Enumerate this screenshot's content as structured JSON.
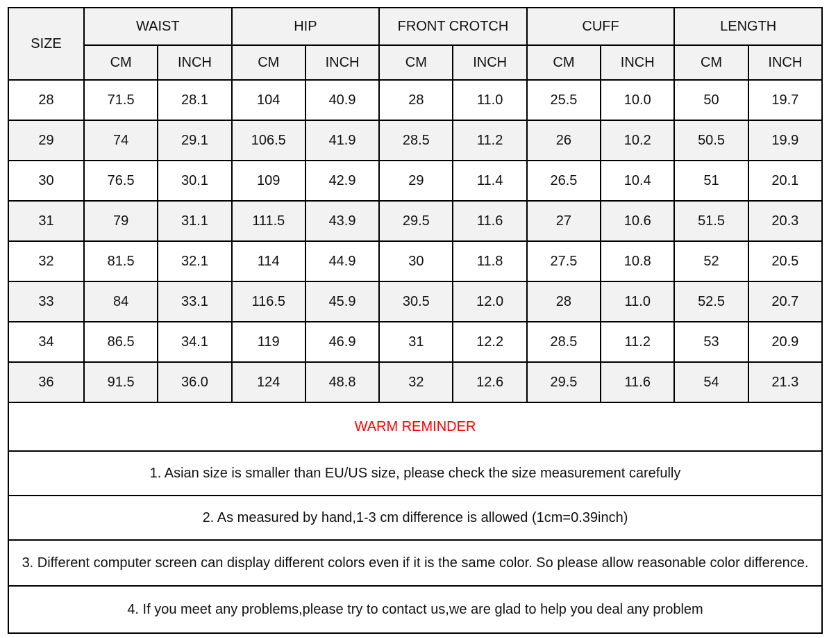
{
  "table": {
    "size_header": "SIZE",
    "unit_cm": "CM",
    "unit_inch": "INCH",
    "groups": [
      "WAIST",
      "HIP",
      "FRONT CROTCH",
      "CUFF",
      "LENGTH"
    ],
    "rows": [
      {
        "size": "28",
        "values": [
          "71.5",
          "28.1",
          "104",
          "40.9",
          "28",
          "11.0",
          "25.5",
          "10.0",
          "50",
          "19.7"
        ]
      },
      {
        "size": "29",
        "values": [
          "74",
          "29.1",
          "106.5",
          "41.9",
          "28.5",
          "11.2",
          "26",
          "10.2",
          "50.5",
          "19.9"
        ]
      },
      {
        "size": "30",
        "values": [
          "76.5",
          "30.1",
          "109",
          "42.9",
          "29",
          "11.4",
          "26.5",
          "10.4",
          "51",
          "20.1"
        ]
      },
      {
        "size": "31",
        "values": [
          "79",
          "31.1",
          "111.5",
          "43.9",
          "29.5",
          "11.6",
          "27",
          "10.6",
          "51.5",
          "20.3"
        ]
      },
      {
        "size": "32",
        "values": [
          "81.5",
          "32.1",
          "114",
          "44.9",
          "30",
          "11.8",
          "27.5",
          "10.8",
          "52",
          "20.5"
        ]
      },
      {
        "size": "33",
        "values": [
          "84",
          "33.1",
          "116.5",
          "45.9",
          "30.5",
          "12.0",
          "28",
          "11.0",
          "52.5",
          "20.7"
        ]
      },
      {
        "size": "34",
        "values": [
          "86.5",
          "34.1",
          "119",
          "46.9",
          "31",
          "12.2",
          "28.5",
          "11.2",
          "53",
          "20.9"
        ]
      },
      {
        "size": "36",
        "values": [
          "91.5",
          "36.0",
          "124",
          "48.8",
          "32",
          "12.6",
          "29.5",
          "11.6",
          "54",
          "21.3"
        ]
      }
    ]
  },
  "reminder": {
    "title": "WARM REMINDER",
    "notes": [
      "1. Asian size is smaller than EU/US size, please check the size measurement carefully",
      "2. As measured by hand,1-3 cm difference is allowed (1cm=0.39inch)",
      "3. Different computer screen can display different colors even if it is the same color. So please allow reasonable color difference.",
      "4. If you meet any problems,please try to contact us,we are glad to help you deal any problem"
    ]
  },
  "colors": {
    "reminder_red": "#ff0000",
    "row_alt": "#f2f2f2",
    "border": "#000000",
    "background": "#ffffff"
  }
}
